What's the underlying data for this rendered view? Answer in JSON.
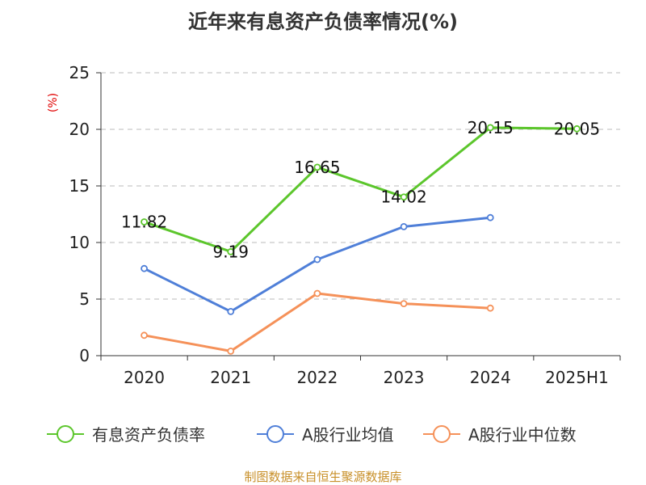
{
  "chart_data": {
    "type": "line",
    "title": "近年来有息资产负债率情况(%)",
    "ylabel": "(%)",
    "categories": [
      "2020",
      "2021",
      "2022",
      "2023",
      "2024",
      "2025H1"
    ],
    "ylim": [
      0,
      25
    ],
    "yticks": [
      "0",
      "5",
      "10",
      "15",
      "20",
      "25"
    ],
    "grid": true,
    "legend_position": "bottom",
    "series": [
      {
        "name": "有息资产负债率",
        "color": "#5cc62c",
        "values": [
          11.82,
          9.19,
          16.65,
          14.02,
          20.15,
          20.05
        ],
        "labels": [
          "11.82",
          "9.19",
          "16.65",
          "14.02",
          "20.15",
          "20.05"
        ]
      },
      {
        "name": "A股行业均值",
        "color": "#4f7fd8",
        "values": [
          7.7,
          3.9,
          8.5,
          11.4,
          12.2,
          null
        ],
        "labels": []
      },
      {
        "name": "A股行业中位数",
        "color": "#f59159",
        "values": [
          1.8,
          0.4,
          5.5,
          4.6,
          4.2,
          null
        ],
        "labels": []
      }
    ],
    "source": "制图数据来自恒生聚源数据库"
  }
}
